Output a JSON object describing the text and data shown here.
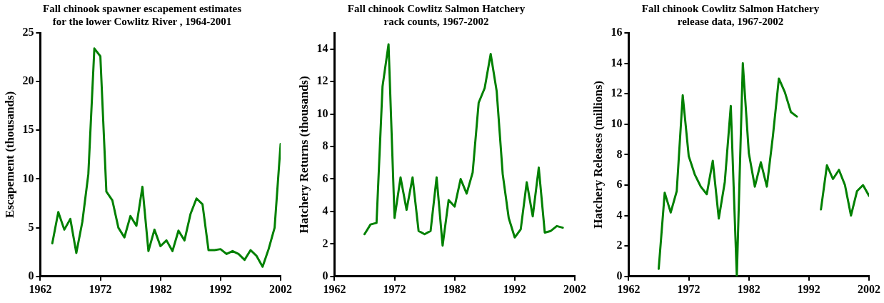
{
  "chart_data": [
    {
      "type": "line",
      "title": "Fall chinook spawner escapement estimates\nfor the lower Cowlitz River , 1964-2001",
      "ylabel": "Escapement (thousands)",
      "color": "#008000",
      "marker": "none",
      "grid": false,
      "legend": false,
      "x": [
        1964,
        1965,
        1966,
        1967,
        1968,
        1969,
        1970,
        1971,
        1972,
        1973,
        1974,
        1975,
        1976,
        1977,
        1978,
        1979,
        1980,
        1981,
        1982,
        1983,
        1984,
        1985,
        1986,
        1987,
        1988,
        1989,
        1990,
        1991,
        1992,
        1993,
        1994,
        1995,
        1996,
        1997,
        1998,
        1999,
        2000,
        2001,
        2002
      ],
      "values": [
        3.4,
        6.6,
        4.8,
        5.9,
        2.4,
        5.6,
        10.5,
        23.4,
        22.6,
        8.7,
        7.8,
        5.0,
        4.0,
        6.2,
        5.2,
        9.2,
        2.6,
        4.8,
        3.1,
        3.7,
        2.6,
        4.7,
        3.7,
        6.4,
        8.0,
        7.4,
        2.7,
        2.7,
        2.8,
        2.3,
        2.6,
        2.3,
        1.7,
        2.7,
        2.1,
        1.0,
        2.8,
        5.0,
        13.6
      ],
      "xlim": [
        1962,
        2002
      ],
      "xticks": [
        1962,
        1972,
        1982,
        1992,
        2002
      ],
      "ylim": [
        0,
        25
      ],
      "yticks": [
        0,
        5,
        10,
        15,
        20,
        25
      ]
    },
    {
      "type": "line",
      "title": "Fall chinook Cowlitz Salmon Hatchery\nrack counts, 1967-2002",
      "ylabel": "Hatchery Returns (thousands)",
      "color": "#008000",
      "marker": "none",
      "grid": false,
      "legend": false,
      "x": [
        1967,
        1968,
        1969,
        1970,
        1971,
        1972,
        1973,
        1974,
        1975,
        1976,
        1977,
        1978,
        1979,
        1980,
        1981,
        1982,
        1983,
        1984,
        1985,
        1986,
        1987,
        1988,
        1989,
        1990,
        1991,
        1992,
        1993,
        1994,
        1995,
        1996,
        1997,
        1998,
        1999,
        2000
      ],
      "values": [
        2.6,
        3.2,
        3.3,
        11.7,
        14.3,
        3.6,
        6.1,
        4.1,
        6.1,
        2.8,
        2.6,
        2.8,
        6.1,
        1.9,
        4.7,
        4.3,
        6.0,
        5.1,
        6.4,
        10.7,
        11.6,
        13.7,
        11.4,
        6.3,
        3.6,
        2.4,
        2.9,
        5.8,
        3.7,
        6.7,
        2.7,
        2.8,
        3.1,
        3.0
      ],
      "xlim": [
        1962,
        2002
      ],
      "xticks": [
        1962,
        1972,
        1982,
        1992,
        2002
      ],
      "ylim": [
        0,
        15
      ],
      "yticks": [
        0,
        2,
        4,
        6,
        8,
        10,
        12,
        14
      ]
    },
    {
      "type": "line",
      "title": "Fall chinook Cowlitz Salmon Hatchery\nrelease data, 1967-2002",
      "ylabel": "Hatchery Releases (millions)",
      "color": "#008000",
      "marker": "none",
      "grid": false,
      "legend": false,
      "x": [
        1967,
        1968,
        1969,
        1970,
        1971,
        1972,
        1973,
        1974,
        1975,
        1976,
        1977,
        1978,
        1979,
        1980,
        1981,
        1982,
        1983,
        1984,
        1985,
        1986,
        1987,
        1988,
        1989,
        1990,
        1991,
        1992,
        1993,
        1994,
        1995,
        1996,
        1997,
        1998,
        1999,
        2000,
        2001,
        2002
      ],
      "values": [
        0.5,
        5.5,
        4.2,
        5.6,
        11.9,
        7.9,
        6.7,
        5.9,
        5.4,
        7.6,
        3.8,
        6.2,
        11.2,
        0,
        14.0,
        8.1,
        5.9,
        7.5,
        5.9,
        9.2,
        13.0,
        12.1,
        10.8,
        10.5,
        null,
        null,
        null,
        4.4,
        7.3,
        6.4,
        7.0,
        6.0,
        4.0,
        5.6,
        6.0,
        5.3
      ],
      "xlim": [
        1962,
        2002
      ],
      "xticks": [
        1962,
        1972,
        1982,
        1992,
        2002
      ],
      "ylim": [
        0,
        16
      ],
      "yticks": [
        0,
        2,
        4,
        6,
        8,
        10,
        12,
        14,
        16
      ]
    }
  ]
}
